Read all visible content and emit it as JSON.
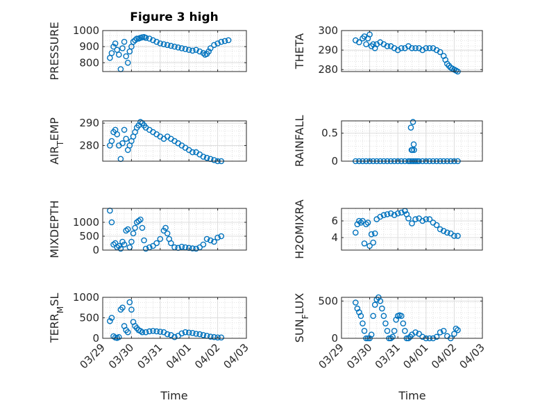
{
  "figure": {
    "title": "Figure 3 high",
    "xlabel": "Time",
    "xticks": [
      "03/29",
      "03/30",
      "03/31",
      "04/01",
      "04/02",
      "04/03"
    ],
    "marker_color": "#0072BD"
  },
  "chart_data": [
    {
      "type": "scatter",
      "ylabel": "PRESSURE",
      "ylim": [
        745,
        1000
      ],
      "yticks": [
        "800",
        "900",
        "1000"
      ],
      "xlim": [
        0,
        4
      ],
      "grid": true,
      "x": [
        0.2,
        0.25,
        0.3,
        0.35,
        0.4,
        0.45,
        0.5,
        0.55,
        0.6,
        0.65,
        0.7,
        0.75,
        0.8,
        0.85,
        0.9,
        0.95,
        1.0,
        1.05,
        1.1,
        1.15,
        1.2,
        1.3,
        1.4,
        1.5,
        1.6,
        1.7,
        1.8,
        1.9,
        2.0,
        2.1,
        2.2,
        2.3,
        2.4,
        2.5,
        2.6,
        2.7,
        2.8,
        2.85,
        2.9,
        2.95,
        3.0,
        3.1,
        3.2,
        3.3,
        3.4,
        3.5
      ],
      "y": [
        830,
        860,
        900,
        920,
        880,
        850,
        760,
        890,
        930,
        840,
        800,
        870,
        900,
        930,
        940,
        950,
        950,
        955,
        958,
        960,
        955,
        950,
        940,
        930,
        920,
        915,
        910,
        905,
        900,
        895,
        890,
        885,
        880,
        875,
        880,
        870,
        860,
        850,
        855,
        870,
        890,
        910,
        920,
        930,
        935,
        940
      ]
    },
    {
      "type": "scatter",
      "ylabel": "THETA",
      "ylim": [
        279,
        300
      ],
      "yticks": [
        "280",
        "290",
        "300"
      ],
      "xlim": [
        0,
        4
      ],
      "grid": true,
      "x": [
        0.4,
        0.5,
        0.6,
        0.65,
        0.7,
        0.75,
        0.8,
        0.85,
        0.9,
        0.95,
        1.0,
        1.1,
        1.2,
        1.3,
        1.4,
        1.5,
        1.6,
        1.7,
        1.8,
        1.9,
        2.0,
        2.1,
        2.2,
        2.3,
        2.4,
        2.5,
        2.6,
        2.7,
        2.8,
        2.9,
        2.95,
        3.0,
        3.05,
        3.1,
        3.15,
        3.2,
        3.25,
        3.3
      ],
      "y": [
        295,
        294,
        296,
        297,
        293,
        296,
        298,
        292,
        293,
        291,
        293,
        294,
        293,
        292,
        292,
        291,
        290,
        291,
        291,
        292,
        291,
        291,
        291,
        290,
        291,
        291,
        291,
        290,
        289,
        287,
        285,
        283,
        282,
        281,
        280.5,
        280,
        279.5,
        279
      ]
    },
    {
      "type": "scatter",
      "ylabel": "AIR_TEMP",
      "ylim": [
        273,
        291
      ],
      "yticks": [
        "280",
        "290"
      ],
      "xlim": [
        0,
        4
      ],
      "grid": true,
      "x": [
        0.2,
        0.25,
        0.3,
        0.35,
        0.4,
        0.45,
        0.5,
        0.55,
        0.6,
        0.65,
        0.7,
        0.75,
        0.8,
        0.85,
        0.9,
        0.95,
        1.0,
        1.05,
        1.1,
        1.15,
        1.2,
        1.3,
        1.4,
        1.5,
        1.6,
        1.7,
        1.8,
        1.9,
        2.0,
        2.1,
        2.2,
        2.3,
        2.4,
        2.5,
        2.6,
        2.7,
        2.8,
        2.9,
        3.0,
        3.1,
        3.2,
        3.3
      ],
      "y": [
        280,
        282,
        286,
        287,
        285,
        280,
        274,
        281,
        287,
        283,
        278,
        280,
        282,
        284,
        286,
        288,
        289,
        290.5,
        290,
        289,
        288,
        287,
        286,
        285,
        284,
        283,
        284,
        283,
        282,
        281,
        280,
        279,
        278,
        277,
        277,
        276,
        275,
        274.5,
        274,
        273.5,
        273,
        273
      ]
    },
    {
      "type": "scatter",
      "ylabel": "RAINFALL",
      "ylim": [
        0,
        0.72
      ],
      "yticks": [
        "0",
        "0.5"
      ],
      "xlim": [
        0,
        4
      ],
      "grid": true,
      "x": [
        0.4,
        0.5,
        0.6,
        0.7,
        0.8,
        0.9,
        1.0,
        1.1,
        1.2,
        1.3,
        1.4,
        1.5,
        1.6,
        1.7,
        1.8,
        1.9,
        1.95,
        2.0,
        2.05,
        2.1,
        2.15,
        2.2,
        2.3,
        2.4,
        2.5,
        2.6,
        2.7,
        2.8,
        2.9,
        3.0,
        3.1,
        3.2,
        3.3,
        1.97,
        1.99,
        2.01,
        2.03,
        2.05,
        2.06
      ],
      "y": [
        0,
        0,
        0,
        0,
        0,
        0,
        0,
        0,
        0,
        0,
        0,
        0,
        0,
        0,
        0,
        0,
        0,
        0,
        0,
        0,
        0,
        0,
        0,
        0,
        0,
        0,
        0,
        0,
        0,
        0,
        0,
        0,
        0,
        0.6,
        0.2,
        0.2,
        0.7,
        0.3,
        0.2
      ]
    },
    {
      "type": "scatter",
      "ylabel": "MIXDEPTH",
      "ylim": [
        0,
        1500
      ],
      "yticks": [
        "0",
        "500",
        "1000"
      ],
      "xlim": [
        0,
        4
      ],
      "grid": true,
      "x": [
        0.2,
        0.25,
        0.3,
        0.35,
        0.4,
        0.45,
        0.5,
        0.55,
        0.6,
        0.65,
        0.7,
        0.75,
        0.8,
        0.85,
        0.9,
        0.95,
        1.0,
        1.05,
        1.1,
        1.15,
        1.2,
        1.3,
        1.4,
        1.5,
        1.6,
        1.7,
        1.75,
        1.8,
        1.85,
        1.9,
        2.0,
        2.1,
        2.2,
        2.3,
        2.4,
        2.5,
        2.6,
        2.7,
        2.8,
        2.9,
        3.0,
        3.1,
        3.2,
        3.3
      ],
      "y": [
        1420,
        1000,
        200,
        250,
        100,
        150,
        50,
        300,
        200,
        700,
        750,
        100,
        300,
        600,
        800,
        1000,
        1050,
        1100,
        800,
        350,
        50,
        100,
        150,
        250,
        400,
        700,
        800,
        600,
        400,
        250,
        100,
        80,
        120,
        100,
        80,
        60,
        50,
        100,
        200,
        400,
        350,
        300,
        450,
        500
      ]
    },
    {
      "type": "scatter",
      "ylabel": "H2OMIXRA",
      "ylim": [
        2.5,
        7.5
      ],
      "yticks": [
        "4",
        "6"
      ],
      "xlim": [
        0,
        4
      ],
      "grid": true,
      "x": [
        0.4,
        0.45,
        0.5,
        0.55,
        0.6,
        0.65,
        0.7,
        0.75,
        0.8,
        0.85,
        0.9,
        0.95,
        1.0,
        1.1,
        1.2,
        1.3,
        1.4,
        1.5,
        1.6,
        1.7,
        1.8,
        1.85,
        1.9,
        2.0,
        2.1,
        2.2,
        2.3,
        2.4,
        2.5,
        2.6,
        2.7,
        2.8,
        2.9,
        3.0,
        3.1,
        3.2,
        3.3
      ],
      "y": [
        4.6,
        5.6,
        6.0,
        5.8,
        6.0,
        3.3,
        5.6,
        5.8,
        3.0,
        4.4,
        3.4,
        4.5,
        6.2,
        6.5,
        6.7,
        6.8,
        6.9,
        6.7,
        6.9,
        7.0,
        7.2,
        6.8,
        6.3,
        5.7,
        6.2,
        6.3,
        6.0,
        6.2,
        6.2,
        5.8,
        5.5,
        5.0,
        4.8,
        4.6,
        4.5,
        4.2,
        4.2
      ]
    },
    {
      "type": "scatter",
      "ylabel": "TERR_MSL",
      "ylim": [
        0,
        1000
      ],
      "yticks": [
        "0",
        "500",
        "1000"
      ],
      "xlim": [
        0,
        4
      ],
      "grid": true,
      "x": [
        0.2,
        0.25,
        0.3,
        0.35,
        0.4,
        0.45,
        0.5,
        0.55,
        0.6,
        0.65,
        0.7,
        0.75,
        0.8,
        0.85,
        0.9,
        0.95,
        1.0,
        1.05,
        1.1,
        1.2,
        1.3,
        1.4,
        1.5,
        1.6,
        1.7,
        1.8,
        1.9,
        2.0,
        2.1,
        2.2,
        2.3,
        2.4,
        2.5,
        2.6,
        2.7,
        2.8,
        2.9,
        3.0,
        3.1,
        3.2,
        3.3
      ],
      "y": [
        420,
        500,
        50,
        20,
        10,
        30,
        700,
        750,
        300,
        200,
        150,
        880,
        700,
        400,
        300,
        250,
        200,
        180,
        150,
        150,
        170,
        180,
        170,
        160,
        150,
        100,
        80,
        30,
        60,
        120,
        150,
        140,
        130,
        110,
        100,
        80,
        60,
        40,
        30,
        20,
        20
      ]
    },
    {
      "type": "scatter",
      "ylabel": "SUN_FLUX",
      "ylim": [
        0,
        550
      ],
      "yticks": [
        "0",
        "500"
      ],
      "xlim": [
        0,
        4
      ],
      "grid": true,
      "x": [
        0.4,
        0.45,
        0.5,
        0.55,
        0.6,
        0.65,
        0.7,
        0.75,
        0.8,
        0.85,
        0.9,
        0.95,
        1.0,
        1.05,
        1.1,
        1.15,
        1.2,
        1.25,
        1.3,
        1.35,
        1.4,
        1.45,
        1.5,
        1.55,
        1.6,
        1.65,
        1.7,
        1.75,
        1.8,
        1.85,
        1.9,
        1.95,
        2.0,
        2.1,
        2.2,
        2.3,
        2.4,
        2.5,
        2.6,
        2.7,
        2.8,
        2.9,
        3.0,
        3.1,
        3.2,
        3.25,
        3.3
      ],
      "y": [
        480,
        400,
        350,
        300,
        200,
        100,
        0,
        0,
        0,
        50,
        300,
        450,
        520,
        550,
        500,
        400,
        300,
        200,
        100,
        0,
        0,
        20,
        100,
        250,
        300,
        310,
        300,
        200,
        100,
        0,
        0,
        20,
        50,
        80,
        60,
        20,
        0,
        0,
        0,
        20,
        80,
        100,
        30,
        0,
        60,
        130,
        110
      ]
    }
  ]
}
